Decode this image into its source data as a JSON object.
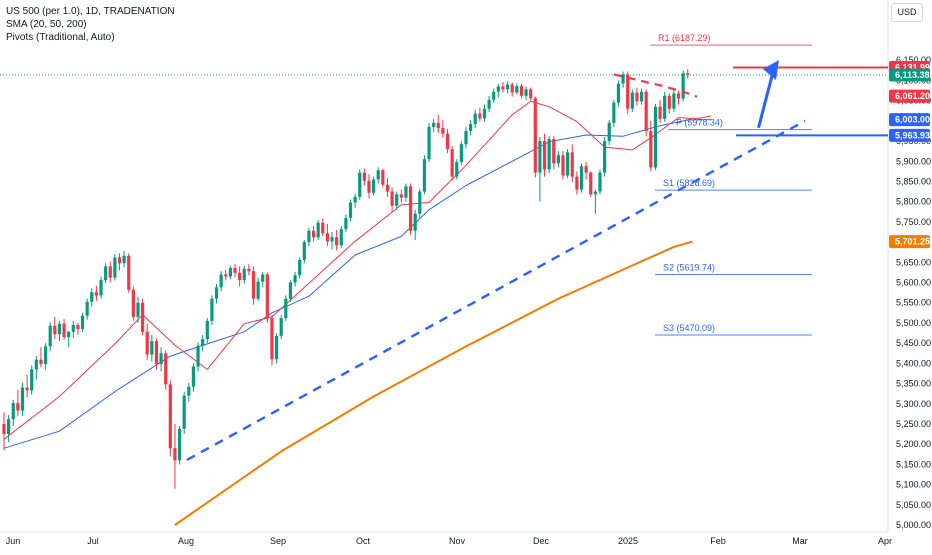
{
  "legend": {
    "line1": "US 500 (per 1.0), 1D, TRADENATION",
    "line2": "SMA (20, 50, 200)",
    "line3": "Pivots (Traditional, Auto)"
  },
  "currency": "USD",
  "colors": {
    "up": "#089981",
    "down": "#f23645",
    "sma20": "#f23645",
    "sma50": "#2962ff",
    "sma200": "#f57c00",
    "resistance": "#f23645",
    "support": "#2962ff",
    "pivot": "#2962ff",
    "pivot_r1": "#f23645",
    "arrow": "#2962ff",
    "ema_label": "#f57c00"
  },
  "chart_data": {
    "type": "candlestick",
    "ylim": [
      5000,
      6200
    ],
    "x_labels": [
      "Jun",
      "Jul",
      "Aug",
      "Sep",
      "Oct",
      "Nov",
      "Dec",
      "2025",
      "Feb",
      "Mar",
      "Apr"
    ],
    "y_ticks": [
      "6,150.00",
      "6,100.00",
      "6,050.00",
      "5,950.00",
      "5,900.00",
      "5,850.00",
      "5,800.00",
      "5,750.00",
      "5,650.00",
      "5,600.00",
      "5,550.00",
      "5,500.00",
      "5,450.00",
      "5,400.00",
      "5,350.00",
      "5,300.00",
      "5,250.00",
      "5,200.00",
      "5,150.00",
      "5,100.00",
      "5,050.00",
      "5,000.00"
    ],
    "y_tick_values": [
      6150,
      6100,
      6050,
      5950,
      5900,
      5850,
      5800,
      5750,
      5650,
      5600,
      5550,
      5500,
      5450,
      5400,
      5350,
      5300,
      5250,
      5200,
      5150,
      5100,
      5050,
      5000
    ],
    "price_labels": [
      {
        "text": "6,131.99",
        "value": 6131.99,
        "color": "#f23645"
      },
      {
        "text": "6,113.38",
        "value": 6113.38,
        "color": "#089981"
      },
      {
        "text": "6,061.20",
        "value": 6061.2,
        "color": "#f23645"
      },
      {
        "text": "6,003.00",
        "value": 6003.0,
        "color": "#2962ff"
      },
      {
        "text": "5,963.93",
        "value": 5963.93,
        "color": "#2962ff"
      },
      {
        "text": "5,701.25",
        "value": 5701.25,
        "color": "#f57c00"
      }
    ],
    "pivots": [
      {
        "label": "R1 (6187.29)",
        "value": 6187.29,
        "color": "#f23645"
      },
      {
        "label": "P (5978.34)",
        "value": 5978.34,
        "color": "#2962ff"
      },
      {
        "label": "S1 (5828.69)",
        "value": 5828.69,
        "color": "#2962ff"
      },
      {
        "label": "S2 (5619.74)",
        "value": 5619.74,
        "color": "#2962ff"
      },
      {
        "label": "S3 (5470.09)",
        "value": 5470.09,
        "color": "#2962ff"
      }
    ],
    "horizontal_levels": [
      {
        "name": "resistance",
        "value": 6131.99
      },
      {
        "name": "support",
        "value": 5963.93
      }
    ],
    "last_price": 6113.38,
    "candles": [
      {
        "o": 5250,
        "h": 5278,
        "l": 5185,
        "c": 5225
      },
      {
        "o": 5225,
        "h": 5272,
        "l": 5205,
        "c": 5262
      },
      {
        "o": 5262,
        "h": 5310,
        "l": 5245,
        "c": 5302
      },
      {
        "o": 5302,
        "h": 5335,
        "l": 5270,
        "c": 5283
      },
      {
        "o": 5283,
        "h": 5352,
        "l": 5270,
        "c": 5340
      },
      {
        "o": 5340,
        "h": 5372,
        "l": 5315,
        "c": 5333
      },
      {
        "o": 5333,
        "h": 5395,
        "l": 5322,
        "c": 5385
      },
      {
        "o": 5385,
        "h": 5418,
        "l": 5360,
        "c": 5409
      },
      {
        "o": 5409,
        "h": 5440,
        "l": 5390,
        "c": 5398
      },
      {
        "o": 5398,
        "h": 5450,
        "l": 5385,
        "c": 5442
      },
      {
        "o": 5442,
        "h": 5502,
        "l": 5430,
        "c": 5493
      },
      {
        "o": 5493,
        "h": 5515,
        "l": 5460,
        "c": 5472
      },
      {
        "o": 5472,
        "h": 5505,
        "l": 5455,
        "c": 5498
      },
      {
        "o": 5498,
        "h": 5510,
        "l": 5458,
        "c": 5465
      },
      {
        "o": 5465,
        "h": 5480,
        "l": 5440,
        "c": 5478
      },
      {
        "o": 5478,
        "h": 5505,
        "l": 5462,
        "c": 5495
      },
      {
        "o": 5495,
        "h": 5500,
        "l": 5470,
        "c": 5485
      },
      {
        "o": 5485,
        "h": 5525,
        "l": 5478,
        "c": 5518
      },
      {
        "o": 5518,
        "h": 5560,
        "l": 5508,
        "c": 5552
      },
      {
        "o": 5552,
        "h": 5585,
        "l": 5540,
        "c": 5576
      },
      {
        "o": 5576,
        "h": 5592,
        "l": 5555,
        "c": 5568
      },
      {
        "o": 5568,
        "h": 5615,
        "l": 5560,
        "c": 5606
      },
      {
        "o": 5606,
        "h": 5648,
        "l": 5598,
        "c": 5640
      },
      {
        "o": 5640,
        "h": 5652,
        "l": 5600,
        "c": 5612
      },
      {
        "o": 5612,
        "h": 5670,
        "l": 5605,
        "c": 5662
      },
      {
        "o": 5662,
        "h": 5672,
        "l": 5630,
        "c": 5648
      },
      {
        "o": 5648,
        "h": 5678,
        "l": 5638,
        "c": 5666
      },
      {
        "o": 5666,
        "h": 5672,
        "l": 5575,
        "c": 5582
      },
      {
        "o": 5582,
        "h": 5590,
        "l": 5505,
        "c": 5515
      },
      {
        "o": 5515,
        "h": 5565,
        "l": 5500,
        "c": 5550
      },
      {
        "o": 5550,
        "h": 5560,
        "l": 5470,
        "c": 5478
      },
      {
        "o": 5478,
        "h": 5498,
        "l": 5408,
        "c": 5422
      },
      {
        "o": 5422,
        "h": 5470,
        "l": 5405,
        "c": 5455
      },
      {
        "o": 5455,
        "h": 5462,
        "l": 5385,
        "c": 5398
      },
      {
        "o": 5398,
        "h": 5440,
        "l": 5380,
        "c": 5425
      },
      {
        "o": 5425,
        "h": 5432,
        "l": 5335,
        "c": 5348
      },
      {
        "o": 5348,
        "h": 5358,
        "l": 5170,
        "c": 5190
      },
      {
        "o": 5190,
        "h": 5250,
        "l": 5090,
        "c": 5160
      },
      {
        "o": 5160,
        "h": 5245,
        "l": 5150,
        "c": 5238
      },
      {
        "o": 5238,
        "h": 5330,
        "l": 5225,
        "c": 5320
      },
      {
        "o": 5320,
        "h": 5352,
        "l": 5305,
        "c": 5342
      },
      {
        "o": 5342,
        "h": 5400,
        "l": 5330,
        "c": 5392
      },
      {
        "o": 5392,
        "h": 5452,
        "l": 5380,
        "c": 5444
      },
      {
        "o": 5444,
        "h": 5470,
        "l": 5430,
        "c": 5460
      },
      {
        "o": 5460,
        "h": 5512,
        "l": 5450,
        "c": 5505
      },
      {
        "o": 5505,
        "h": 5568,
        "l": 5495,
        "c": 5560
      },
      {
        "o": 5560,
        "h": 5596,
        "l": 5548,
        "c": 5588
      },
      {
        "o": 5588,
        "h": 5628,
        "l": 5578,
        "c": 5620
      },
      {
        "o": 5620,
        "h": 5632,
        "l": 5605,
        "c": 5615
      },
      {
        "o": 5615,
        "h": 5642,
        "l": 5608,
        "c": 5636
      },
      {
        "o": 5636,
        "h": 5646,
        "l": 5612,
        "c": 5624
      },
      {
        "o": 5624,
        "h": 5640,
        "l": 5590,
        "c": 5606
      },
      {
        "o": 5606,
        "h": 5642,
        "l": 5598,
        "c": 5634
      },
      {
        "o": 5634,
        "h": 5645,
        "l": 5618,
        "c": 5628
      },
      {
        "o": 5628,
        "h": 5640,
        "l": 5545,
        "c": 5560
      },
      {
        "o": 5560,
        "h": 5612,
        "l": 5555,
        "c": 5602
      },
      {
        "o": 5602,
        "h": 5626,
        "l": 5588,
        "c": 5620
      },
      {
        "o": 5620,
        "h": 5625,
        "l": 5500,
        "c": 5512
      },
      {
        "o": 5512,
        "h": 5520,
        "l": 5395,
        "c": 5410
      },
      {
        "o": 5410,
        "h": 5475,
        "l": 5400,
        "c": 5468
      },
      {
        "o": 5468,
        "h": 5520,
        "l": 5460,
        "c": 5512
      },
      {
        "o": 5512,
        "h": 5568,
        "l": 5505,
        "c": 5560
      },
      {
        "o": 5560,
        "h": 5606,
        "l": 5552,
        "c": 5600
      },
      {
        "o": 5600,
        "h": 5626,
        "l": 5590,
        "c": 5618
      },
      {
        "o": 5618,
        "h": 5662,
        "l": 5610,
        "c": 5656
      },
      {
        "o": 5656,
        "h": 5705,
        "l": 5648,
        "c": 5700
      },
      {
        "o": 5700,
        "h": 5735,
        "l": 5690,
        "c": 5728
      },
      {
        "o": 5728,
        "h": 5740,
        "l": 5702,
        "c": 5712
      },
      {
        "o": 5712,
        "h": 5755,
        "l": 5705,
        "c": 5748
      },
      {
        "o": 5748,
        "h": 5758,
        "l": 5715,
        "c": 5722
      },
      {
        "o": 5722,
        "h": 5745,
        "l": 5690,
        "c": 5702
      },
      {
        "o": 5702,
        "h": 5725,
        "l": 5682,
        "c": 5712
      },
      {
        "o": 5712,
        "h": 5730,
        "l": 5680,
        "c": 5692
      },
      {
        "o": 5692,
        "h": 5740,
        "l": 5685,
        "c": 5732
      },
      {
        "o": 5732,
        "h": 5768,
        "l": 5725,
        "c": 5760
      },
      {
        "o": 5760,
        "h": 5805,
        "l": 5752,
        "c": 5798
      },
      {
        "o": 5798,
        "h": 5820,
        "l": 5785,
        "c": 5812
      },
      {
        "o": 5812,
        "h": 5880,
        "l": 5805,
        "c": 5872
      },
      {
        "o": 5872,
        "h": 5882,
        "l": 5840,
        "c": 5852
      },
      {
        "o": 5852,
        "h": 5868,
        "l": 5808,
        "c": 5822
      },
      {
        "o": 5822,
        "h": 5862,
        "l": 5815,
        "c": 5855
      },
      {
        "o": 5855,
        "h": 5885,
        "l": 5845,
        "c": 5878
      },
      {
        "o": 5878,
        "h": 5882,
        "l": 5835,
        "c": 5842
      },
      {
        "o": 5842,
        "h": 5858,
        "l": 5812,
        "c": 5825
      },
      {
        "o": 5825,
        "h": 5835,
        "l": 5775,
        "c": 5790
      },
      {
        "o": 5790,
        "h": 5825,
        "l": 5780,
        "c": 5818
      },
      {
        "o": 5818,
        "h": 5830,
        "l": 5798,
        "c": 5810
      },
      {
        "o": 5810,
        "h": 5845,
        "l": 5800,
        "c": 5838
      },
      {
        "o": 5838,
        "h": 5845,
        "l": 5718,
        "c": 5728
      },
      {
        "o": 5728,
        "h": 5780,
        "l": 5705,
        "c": 5770
      },
      {
        "o": 5770,
        "h": 5832,
        "l": 5760,
        "c": 5825
      },
      {
        "o": 5825,
        "h": 5915,
        "l": 5818,
        "c": 5905
      },
      {
        "o": 5905,
        "h": 5995,
        "l": 5898,
        "c": 5985
      },
      {
        "o": 5985,
        "h": 6005,
        "l": 5972,
        "c": 5995
      },
      {
        "o": 5995,
        "h": 6015,
        "l": 5970,
        "c": 5982
      },
      {
        "o": 5982,
        "h": 6002,
        "l": 5958,
        "c": 5968
      },
      {
        "o": 5968,
        "h": 5980,
        "l": 5920,
        "c": 5930
      },
      {
        "o": 5930,
        "h": 5938,
        "l": 5852,
        "c": 5862
      },
      {
        "o": 5862,
        "h": 5905,
        "l": 5855,
        "c": 5898
      },
      {
        "o": 5898,
        "h": 5950,
        "l": 5890,
        "c": 5942
      },
      {
        "o": 5942,
        "h": 5985,
        "l": 5932,
        "c": 5975
      },
      {
        "o": 5975,
        "h": 6002,
        "l": 5965,
        "c": 5992
      },
      {
        "o": 5992,
        "h": 6028,
        "l": 5982,
        "c": 6018
      },
      {
        "o": 6018,
        "h": 6032,
        "l": 5998,
        "c": 6006
      },
      {
        "o": 6006,
        "h": 6040,
        "l": 5998,
        "c": 6030
      },
      {
        "o": 6030,
        "h": 6062,
        "l": 6022,
        "c": 6052
      },
      {
        "o": 6052,
        "h": 6080,
        "l": 6045,
        "c": 6072
      },
      {
        "o": 6072,
        "h": 6092,
        "l": 6058,
        "c": 6085
      },
      {
        "o": 6085,
        "h": 6096,
        "l": 6070,
        "c": 6078
      },
      {
        "o": 6078,
        "h": 6098,
        "l": 6068,
        "c": 6090
      },
      {
        "o": 6090,
        "h": 6095,
        "l": 6060,
        "c": 6070
      },
      {
        "o": 6070,
        "h": 6092,
        "l": 6065,
        "c": 6086
      },
      {
        "o": 6086,
        "h": 6090,
        "l": 6055,
        "c": 6062
      },
      {
        "o": 6062,
        "h": 6085,
        "l": 6052,
        "c": 6078
      },
      {
        "o": 6078,
        "h": 6082,
        "l": 6050,
        "c": 6056
      },
      {
        "o": 6056,
        "h": 6060,
        "l": 5860,
        "c": 5872
      },
      {
        "o": 5872,
        "h": 5960,
        "l": 5800,
        "c": 5950
      },
      {
        "o": 5950,
        "h": 5968,
        "l": 5862,
        "c": 5880
      },
      {
        "o": 5880,
        "h": 5962,
        "l": 5870,
        "c": 5955
      },
      {
        "o": 5955,
        "h": 5962,
        "l": 5880,
        "c": 5895
      },
      {
        "o": 5895,
        "h": 5925,
        "l": 5885,
        "c": 5915
      },
      {
        "o": 5915,
        "h": 5925,
        "l": 5855,
        "c": 5865
      },
      {
        "o": 5865,
        "h": 5930,
        "l": 5858,
        "c": 5922
      },
      {
        "o": 5922,
        "h": 5942,
        "l": 5848,
        "c": 5862
      },
      {
        "o": 5862,
        "h": 5875,
        "l": 5818,
        "c": 5830
      },
      {
        "o": 5830,
        "h": 5895,
        "l": 5822,
        "c": 5888
      },
      {
        "o": 5888,
        "h": 5898,
        "l": 5855,
        "c": 5872
      },
      {
        "o": 5872,
        "h": 5875,
        "l": 5812,
        "c": 5818
      },
      {
        "o": 5818,
        "h": 5830,
        "l": 5770,
        "c": 5825
      },
      {
        "o": 5825,
        "h": 5880,
        "l": 5818,
        "c": 5872
      },
      {
        "o": 5872,
        "h": 5960,
        "l": 5862,
        "c": 5950
      },
      {
        "o": 5950,
        "h": 6002,
        "l": 5940,
        "c": 5995
      },
      {
        "o": 5995,
        "h": 6052,
        "l": 5985,
        "c": 6045
      },
      {
        "o": 6045,
        "h": 6100,
        "l": 6035,
        "c": 6092
      },
      {
        "o": 6092,
        "h": 6122,
        "l": 6082,
        "c": 6115
      },
      {
        "o": 6115,
        "h": 6122,
        "l": 6018,
        "c": 6030
      },
      {
        "o": 6030,
        "h": 6078,
        "l": 6022,
        "c": 6070
      },
      {
        "o": 6070,
        "h": 6082,
        "l": 6038,
        "c": 6048
      },
      {
        "o": 6048,
        "h": 6080,
        "l": 6040,
        "c": 6072
      },
      {
        "o": 6072,
        "h": 6078,
        "l": 5962,
        "c": 5975
      },
      {
        "o": 5975,
        "h": 6000,
        "l": 5875,
        "c": 5885
      },
      {
        "o": 5885,
        "h": 6042,
        "l": 5878,
        "c": 6035
      },
      {
        "o": 6035,
        "h": 6052,
        "l": 5995,
        "c": 6005
      },
      {
        "o": 6005,
        "h": 6072,
        "l": 5998,
        "c": 6062
      },
      {
        "o": 6062,
        "h": 6068,
        "l": 6018,
        "c": 6030
      },
      {
        "o": 6030,
        "h": 6078,
        "l": 6022,
        "c": 6068
      },
      {
        "o": 6068,
        "h": 6075,
        "l": 6040,
        "c": 6055
      },
      {
        "o": 6055,
        "h": 6125,
        "l": 6048,
        "c": 6118
      },
      {
        "o": 6118,
        "h": 6128,
        "l": 6105,
        "c": 6113.38
      }
    ],
    "sma20": [
      [
        0,
        5212
      ],
      [
        12,
        5318
      ],
      [
        24,
        5448
      ],
      [
        30,
        5520
      ],
      [
        37,
        5445
      ],
      [
        44,
        5385
      ],
      [
        52,
        5498
      ],
      [
        58,
        5515
      ],
      [
        66,
        5598
      ],
      [
        76,
        5702
      ],
      [
        86,
        5792
      ],
      [
        92,
        5798
      ],
      [
        100,
        5890
      ],
      [
        110,
        6015
      ],
      [
        114,
        6048
      ],
      [
        118,
        6035
      ],
      [
        124,
        5998
      ],
      [
        130,
        5935
      ],
      [
        136,
        5928
      ],
      [
        140,
        5958
      ],
      [
        146,
        6008
      ],
      [
        150,
        6005
      ],
      [
        153,
        6012
      ]
    ],
    "sma50": [
      [
        0,
        5190
      ],
      [
        12,
        5232
      ],
      [
        24,
        5330
      ],
      [
        36,
        5418
      ],
      [
        44,
        5448
      ],
      [
        52,
        5478
      ],
      [
        58,
        5525
      ],
      [
        66,
        5566
      ],
      [
        76,
        5668
      ],
      [
        86,
        5714
      ],
      [
        92,
        5780
      ],
      [
        100,
        5840
      ],
      [
        110,
        5900
      ],
      [
        118,
        5948
      ],
      [
        126,
        5965
      ],
      [
        134,
        5962
      ],
      [
        142,
        5988
      ],
      [
        148,
        6002
      ],
      [
        153,
        6003
      ]
    ],
    "sma200": [
      [
        37,
        5000
      ],
      [
        60,
        5182
      ],
      [
        80,
        5318
      ],
      [
        100,
        5442
      ],
      [
        120,
        5560
      ],
      [
        134,
        5632
      ],
      [
        145,
        5688
      ],
      [
        149,
        5701.25
      ]
    ],
    "trendline": [
      [
        37,
        5161
      ],
      [
        150,
        6000
      ]
    ],
    "resistance_dashed": [
      [
        132,
        6115
      ],
      [
        142,
        6088
      ],
      [
        147,
        6072
      ],
      [
        150,
        6060
      ]
    ],
    "arrow": [
      [
        146,
        5963
      ],
      [
        153,
        6100
      ]
    ]
  }
}
